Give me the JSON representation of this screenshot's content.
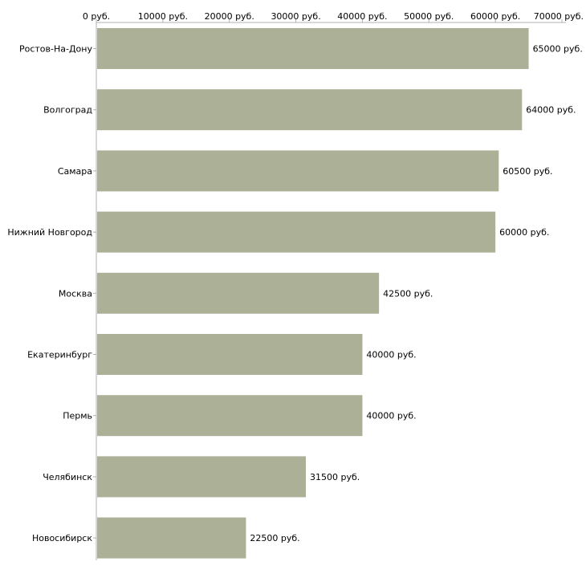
{
  "chart_data": {
    "type": "bar",
    "orientation": "horizontal",
    "title": "",
    "xlabel": "",
    "ylabel": "",
    "xlim": [
      0,
      70000
    ],
    "x_ticks": [
      0,
      10000,
      20000,
      30000,
      40000,
      50000,
      60000,
      70000
    ],
    "x_tick_labels": [
      "0 руб.",
      "10000 руб.",
      "20000 руб.",
      "30000 руб.",
      "40000 руб.",
      "50000 руб.",
      "60000 руб.",
      "70000 руб."
    ],
    "x_axis_position": "top",
    "grid": false,
    "legend": "none",
    "categories": [
      "Ростов-На-Дону",
      "Волгоград",
      "Самара",
      "Нижний Новгород",
      "Москва",
      "Екатеринбург",
      "Пермь",
      "Челябинск",
      "Новосибирск"
    ],
    "values": [
      65000,
      64000,
      60500,
      60000,
      42500,
      40000,
      40000,
      31500,
      22500
    ],
    "value_labels": [
      "65000 руб.",
      "64000 руб.",
      "60500 руб.",
      "60000 руб.",
      "42500 руб.",
      "40000 руб.",
      "40000 руб.",
      "31500 руб.",
      "22500 руб."
    ],
    "bar_color": "#abb097"
  }
}
